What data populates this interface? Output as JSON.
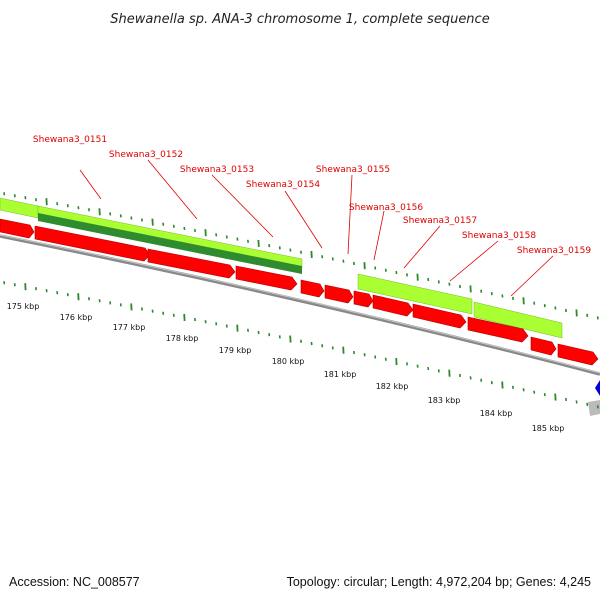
{
  "title": "Shewanella sp. ANA-3 chromosome 1, complete sequence",
  "footer": {
    "accession": "Accession: NC_008577",
    "summary": "Topology: circular; Length: 4,972,204 bp; Genes: 4,245"
  },
  "colors": {
    "cds": "#ff0000",
    "cds_dark": "#b00000",
    "gene_light": "#aaff33",
    "gene_dark": "#2e8b2e",
    "backbone": "#888888",
    "ticks": "#2a8a2a",
    "label": "#e00000",
    "partial_gene_blue": "#0000dd",
    "partial_backbone_grey": "#bbbbbb"
  },
  "genes": [
    {
      "label": "Shewana3_0151"
    },
    {
      "label": "Shewana3_0152"
    },
    {
      "label": "Shewana3_0153"
    },
    {
      "label": "Shewana3_0154"
    },
    {
      "label": "Shewana3_0155"
    },
    {
      "label": "Shewana3_0156"
    },
    {
      "label": "Shewana3_0157"
    },
    {
      "label": "Shewana3_0158"
    },
    {
      "label": "Shewana3_0159"
    }
  ],
  "scale": {
    "unit": "kbp",
    "labels": [
      "175 kbp",
      "176 kbp",
      "177 kbp",
      "178 kbp",
      "179 kbp",
      "180 kbp",
      "181 kbp",
      "182 kbp",
      "183 kbp",
      "184 kbp",
      "185 kbp"
    ]
  }
}
